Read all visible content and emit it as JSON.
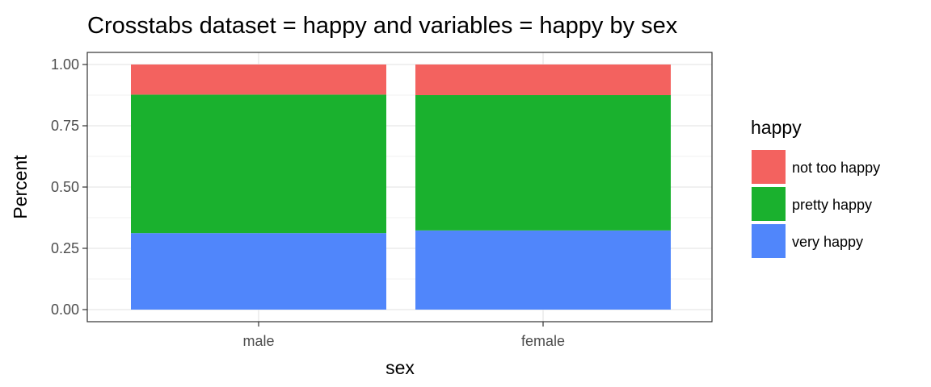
{
  "chart_data": {
    "type": "bar",
    "stacked": true,
    "title": "Crosstabs dataset = happy and variables = happy by sex",
    "xlabel": "sex",
    "ylabel": "Percent",
    "categories": [
      "male",
      "female"
    ],
    "ylim": [
      0,
      1
    ],
    "yticks": [
      0.0,
      0.25,
      0.5,
      0.75,
      1.0
    ],
    "ytick_labels": [
      "0.00",
      "0.25",
      "0.50",
      "0.75",
      "1.00"
    ],
    "grid": true,
    "legend": {
      "title": "happy",
      "placement": "right"
    },
    "series": [
      {
        "name": "very happy",
        "color": "#5086fb",
        "values": [
          0.312,
          0.323
        ]
      },
      {
        "name": "pretty happy",
        "color": "#1ab12e",
        "values": [
          0.565,
          0.552
        ]
      },
      {
        "name": "not too happy",
        "color": "#f3625f",
        "values": [
          0.123,
          0.125
        ]
      }
    ]
  }
}
